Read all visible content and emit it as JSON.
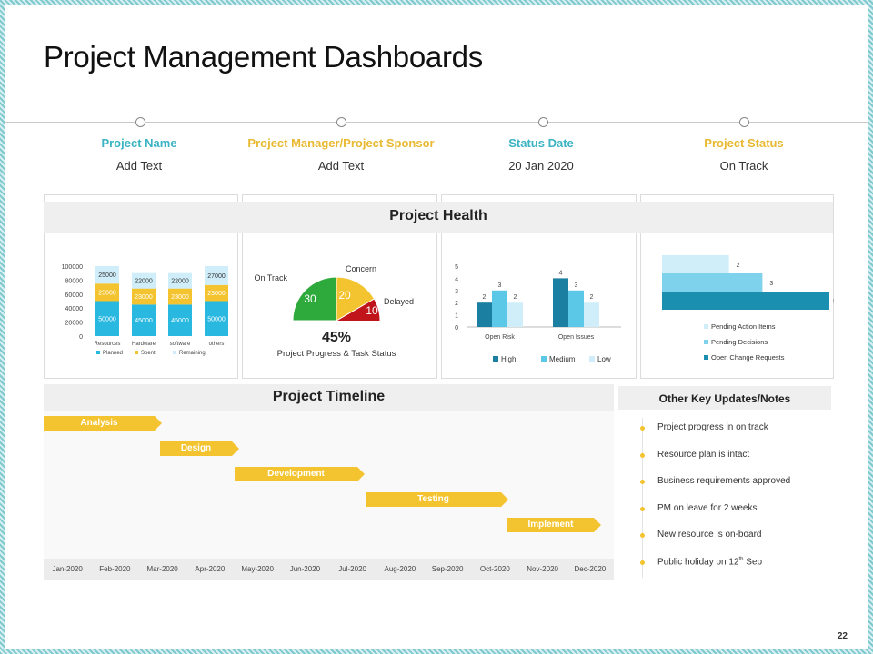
{
  "page": {
    "title": "Project Management Dashboards",
    "page_number": "22"
  },
  "info": [
    {
      "label": "Project Name",
      "value": "Add Text",
      "color": "#3bb3c3"
    },
    {
      "label": "Project Manager/Project Sponsor",
      "value": "Add Text",
      "color": "#e8b931"
    },
    {
      "label": "Status Date",
      "value": "20 Jan 2020",
      "color": "#3bb3c3"
    },
    {
      "label": "Project Status",
      "value": "On Track",
      "color": "#e8b931"
    }
  ],
  "health": {
    "title": "Project Health"
  },
  "chart_data": [
    {
      "type": "bar",
      "stacked": true,
      "categories": [
        "Resources",
        "Hardware",
        "software",
        "others"
      ],
      "series": [
        {
          "name": "Planned",
          "values": [
            50000,
            45000,
            45000,
            50000
          ],
          "color": "#29b8e0"
        },
        {
          "name": "Spent",
          "values": [
            25000,
            23000,
            23000,
            23000
          ],
          "color": "#f4c430"
        },
        {
          "name": "Remaining",
          "values": [
            25000,
            22000,
            22000,
            27000
          ],
          "color": "#cfeefa"
        }
      ],
      "y_ticks": [
        "100000",
        "80000",
        "60000",
        "40000",
        "20000",
        "0"
      ],
      "ylim": [
        0,
        100000
      ],
      "legend": "bottom"
    },
    {
      "type": "pie",
      "style": "half-donut gauge",
      "slices": [
        {
          "name": "On Track",
          "value": 30,
          "color": "#2eaa3c"
        },
        {
          "name": "Concern",
          "value": 20,
          "color": "#f4c430"
        },
        {
          "name": "Delayed",
          "value": 10,
          "color": "#c0161b"
        }
      ],
      "center_value": "45%",
      "caption": "Project Progress & Task Status"
    },
    {
      "type": "bar",
      "categories": [
        "Open Risk",
        "Open Issues"
      ],
      "series": [
        {
          "name": "High",
          "values": [
            2,
            4
          ],
          "color": "#1a7fa0"
        },
        {
          "name": "Medium",
          "values": [
            3,
            3
          ],
          "color": "#5cc8e8"
        },
        {
          "name": "Low",
          "values": [
            2,
            2
          ],
          "color": "#cfeefa"
        }
      ],
      "y_ticks": [
        "5",
        "4",
        "3",
        "2",
        "1",
        "0"
      ],
      "ylim": [
        0,
        5
      ],
      "legend": "bottom"
    },
    {
      "type": "bar",
      "orientation": "horizontal",
      "series": [
        {
          "name": "Pending Action Items",
          "value": 2,
          "color": "#cfeefa"
        },
        {
          "name": "Pending Decisions",
          "value": 3,
          "color": "#7ed2ec"
        },
        {
          "name": "Open Change Requests",
          "value": 5,
          "color": "#1a8fb0"
        }
      ],
      "xlim": [
        0,
        5
      ],
      "legend": "bottom"
    }
  ],
  "timeline": {
    "title": "Project Timeline",
    "months": [
      "Jan-2020",
      "Feb-2020",
      "Mar-2020",
      "Apr-2020",
      "May-2020",
      "Jun-2020",
      "Jul-2020",
      "Aug-2020",
      "Sep-2020",
      "Oct-2020",
      "Nov-2020",
      "Dec-2020"
    ],
    "phases": [
      {
        "name": "Analysis",
        "start": "Jan-2020",
        "end": "Mar-2020"
      },
      {
        "name": "Design",
        "start": "Mar-2020",
        "end": "Apr-2020"
      },
      {
        "name": "Development",
        "start": "Apr-2020",
        "end": "Jul-2020"
      },
      {
        "name": "Testing",
        "start": "Jul-2020",
        "end": "Oct-2020"
      },
      {
        "name": "Implement",
        "start": "Oct-2020",
        "end": "Dec-2020"
      }
    ]
  },
  "notes": {
    "title": "Other Key Updates/Notes",
    "items": [
      "Project progress in on track",
      "Resource plan is intact",
      "Business requirements approved",
      "PM on leave for 2 weeks",
      "New resource is on-board",
      "Public holiday on 12"
    ],
    "last_item_superscript": "th",
    "last_item_suffix": " Sep"
  }
}
